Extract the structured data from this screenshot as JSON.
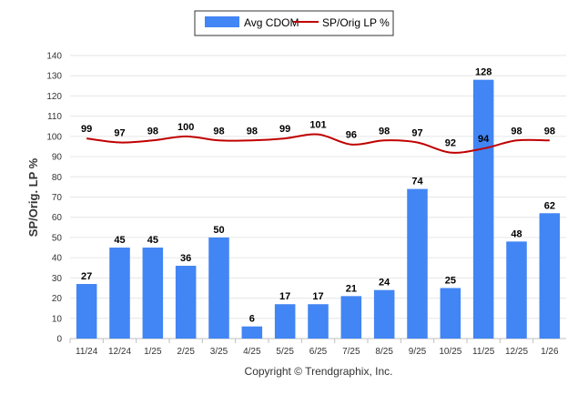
{
  "chart_data": {
    "type": "bar+line",
    "categories": [
      "11/24",
      "12/24",
      "1/25",
      "2/25",
      "3/25",
      "4/25",
      "5/25",
      "6/25",
      "7/25",
      "8/25",
      "9/25",
      "10/25",
      "11/25",
      "12/25",
      "1/26"
    ],
    "series": [
      {
        "name": "Avg CDOM",
        "type": "bar",
        "values": [
          27,
          45,
          45,
          36,
          50,
          6,
          17,
          17,
          21,
          24,
          74,
          25,
          128,
          48,
          62
        ],
        "color": "#4285f4"
      },
      {
        "name": "SP/Orig LP %",
        "type": "line",
        "values": [
          99,
          97,
          98,
          100,
          98,
          98,
          99,
          101,
          96,
          98,
          97,
          92,
          94,
          98,
          98
        ],
        "color": "#c00000"
      }
    ],
    "ylabel": "SP/Orig. LP %",
    "ylim": [
      0,
      140
    ],
    "yticks": [
      0,
      10,
      20,
      30,
      40,
      50,
      60,
      70,
      80,
      90,
      100,
      110,
      120,
      130,
      140
    ],
    "legend_position": "top-center",
    "grid": true
  },
  "footer": {
    "copyright": "Copyright © Trendgraphix, Inc."
  }
}
